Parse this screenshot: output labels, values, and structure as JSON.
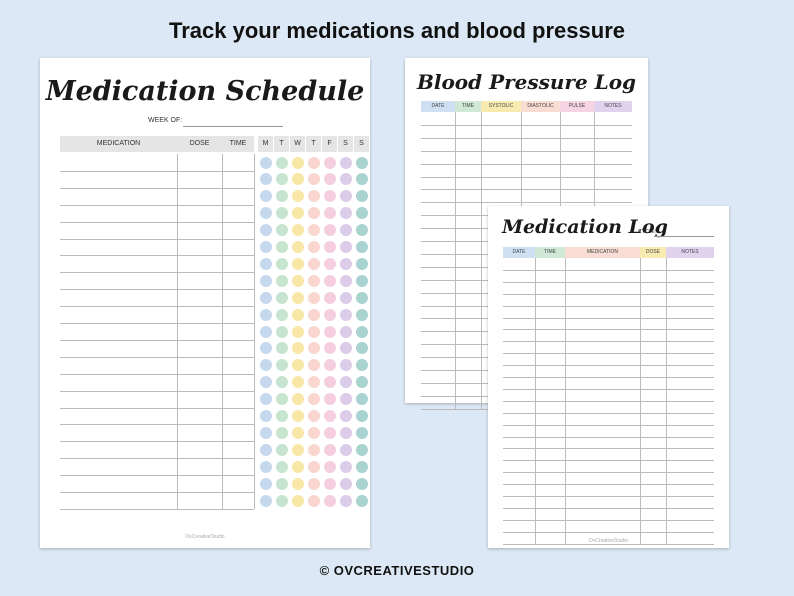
{
  "headline": "Track your medications and blood pressure",
  "footer": "© OVCREATIVESTUDIO",
  "schedule": {
    "title": "Medication Schedule",
    "week_of": "WEEK OF:",
    "columns": [
      "MEDICATION",
      "DOSE",
      "TIME"
    ],
    "days": [
      "M",
      "T",
      "W",
      "T",
      "F",
      "S",
      "S"
    ],
    "day_colors": [
      "#c6d8ee",
      "#c7e4cf",
      "#f8e7a6",
      "#f9d6cf",
      "#f5cfe0",
      "#dccbe9",
      "#a9d3d0"
    ],
    "row_count": 21,
    "credit": "OvCreativeStudio"
  },
  "bp_log": {
    "title": "Blood Pressure Log",
    "columns": [
      {
        "label": "DATE",
        "color": "#cfe0f3"
      },
      {
        "label": "TIME",
        "color": "#cfe9d6"
      },
      {
        "label": "SYSTOLIC",
        "color": "#f8ebb0"
      },
      {
        "label": "DIASTOLIC",
        "color": "#f9dcd3"
      },
      {
        "label": "PULSE",
        "color": "#f6d4e3"
      },
      {
        "label": "NOTES",
        "color": "#e1d2ee"
      }
    ],
    "row_count": 23
  },
  "med_log": {
    "title": "Medication Log",
    "cycle": "CYCLE:",
    "columns": [
      {
        "label": "DATE",
        "color": "#cfe0f3"
      },
      {
        "label": "TIME",
        "color": "#cfe9d6"
      },
      {
        "label": "MEDICATION",
        "color": "#f9dcd3"
      },
      {
        "label": "DOSE",
        "color": "#f8ebb0"
      },
      {
        "label": "NOTES",
        "color": "#e1d2ee"
      }
    ],
    "row_count": 24,
    "credit": "OvCreativeStudio"
  }
}
